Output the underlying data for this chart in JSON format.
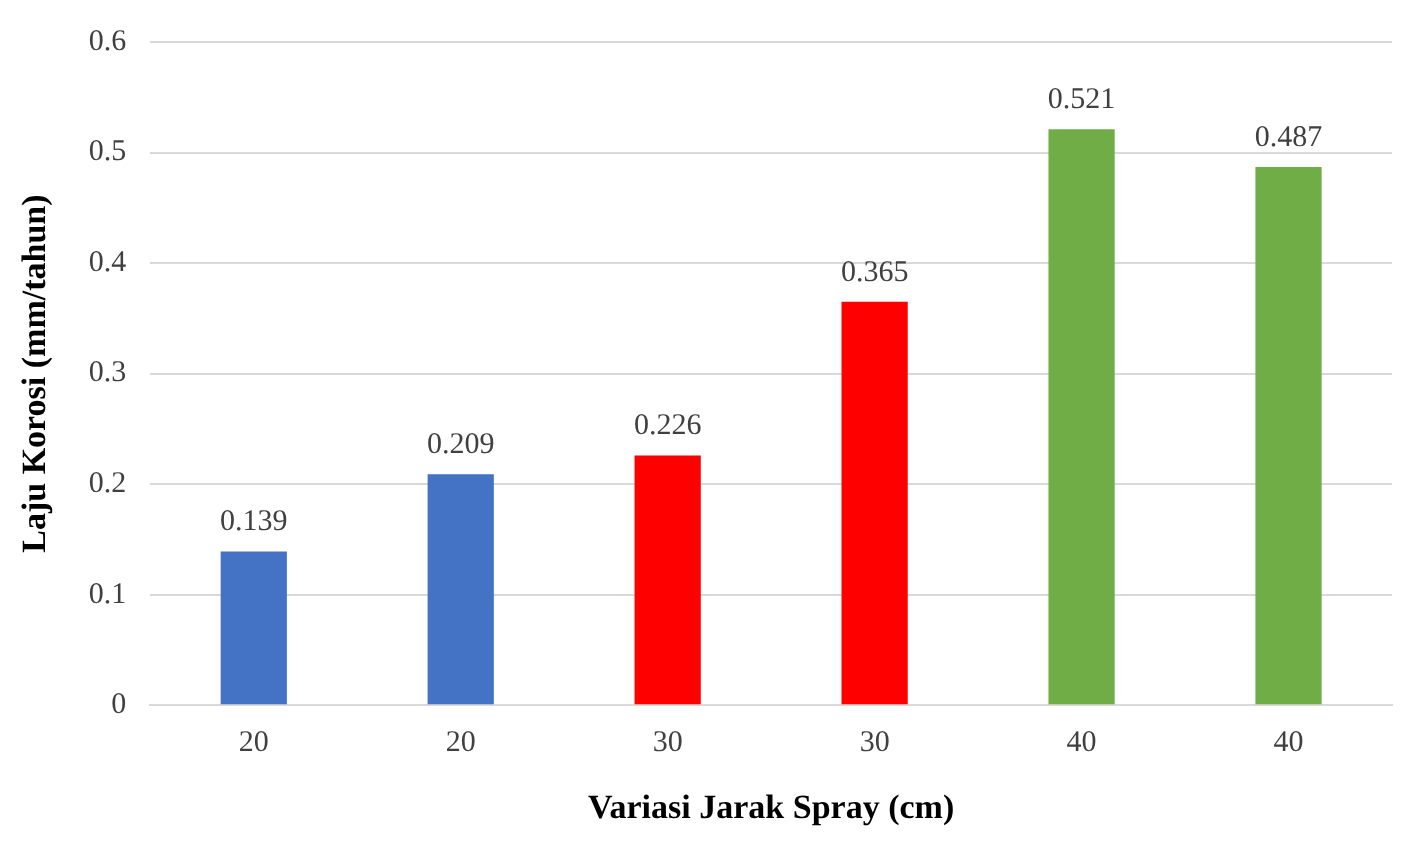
{
  "chart_data": {
    "type": "bar",
    "xlabel": "Variasi Jarak Spray (cm)",
    "ylabel": "Laju Korosi (mm/tahun)",
    "categories": [
      "20",
      "20",
      "30",
      "30",
      "40",
      "40"
    ],
    "values": [
      0.139,
      0.209,
      0.226,
      0.365,
      0.521,
      0.487
    ],
    "colors": [
      "#4472c4",
      "#4472c4",
      "#ff0000",
      "#ff0000",
      "#70ad47",
      "#70ad47"
    ],
    "ylim": [
      0,
      0.6
    ],
    "yticks": [
      0,
      0.1,
      0.2,
      0.3,
      0.4,
      0.5,
      0.6
    ],
    "grid": "y",
    "data_labels": true,
    "legend": false
  }
}
